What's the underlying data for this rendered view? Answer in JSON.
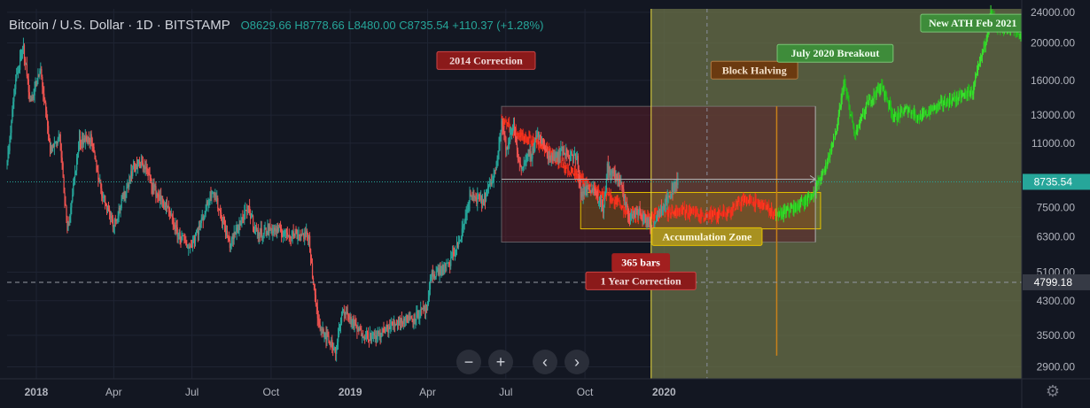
{
  "header": {
    "symbol": "Bitcoin / U.S. Dollar · 1D · BITSTAMP",
    "open": "O8629.66",
    "high": "H8778.66",
    "low": "L8480.00",
    "close": "C8735.54",
    "change": "+110.37 (+1.28%)"
  },
  "controls": {
    "zoom_out": "−",
    "zoom_in": "+",
    "scroll_left": "‹",
    "scroll_right": "›",
    "settings_icon": "gear-icon"
  },
  "colors": {
    "background": "#131722",
    "up": "#26a69a",
    "down": "#ef5350",
    "projection_red": "#e8281c",
    "projection_green": "#22c11a",
    "future_zone": "#6b7148",
    "correction_box": "#5a1e28"
  },
  "chart_data": {
    "type": "candlestick",
    "title": "Bitcoin / U.S. Dollar · 1D · BITSTAMP",
    "y_scale": "log",
    "ylim": [
      2700,
      24500
    ],
    "y_ticks": [
      2900,
      3500,
      4300,
      5100,
      6300,
      7500,
      11000,
      13000,
      16000,
      20000,
      24000
    ],
    "y_tick_labels": [
      "2900.00",
      "3500.00",
      "4300.00",
      "5100.00",
      "6300.00",
      "7500.00",
      "11000.00",
      "13000.00",
      "16000.00",
      "20000.00",
      "24000.00"
    ],
    "x_range": [
      "2017-11-28",
      "2021-02-20"
    ],
    "x_ticks": [
      {
        "date": "2018-01-01",
        "label": "2018",
        "bold": true
      },
      {
        "date": "2018-04-01",
        "label": "Apr",
        "bold": false
      },
      {
        "date": "2018-07-01",
        "label": "Jul",
        "bold": false
      },
      {
        "date": "2018-10-01",
        "label": "Oct",
        "bold": false
      },
      {
        "date": "2019-01-01",
        "label": "2019",
        "bold": true
      },
      {
        "date": "2019-04-01",
        "label": "Apr",
        "bold": false
      },
      {
        "date": "2019-07-01",
        "label": "Jul",
        "bold": false
      },
      {
        "date": "2019-10-01",
        "label": "Oct",
        "bold": false
      },
      {
        "date": "2020-01-01",
        "label": "2020",
        "bold": true
      }
    ],
    "price_labels": [
      {
        "label": "8735.54",
        "value": 8735.54,
        "style": "last"
      },
      {
        "label": "4799.18",
        "value": 4799.18,
        "style": "crosshair"
      }
    ],
    "historical": [
      [
        "2017-11-28",
        9800
      ],
      [
        "2017-12-08",
        16000
      ],
      [
        "2017-12-17",
        19500
      ],
      [
        "2017-12-25",
        14000
      ],
      [
        "2018-01-06",
        17000
      ],
      [
        "2018-01-17",
        10500
      ],
      [
        "2018-01-28",
        11500
      ],
      [
        "2018-02-06",
        6500
      ],
      [
        "2018-02-20",
        11200
      ],
      [
        "2018-03-05",
        11300
      ],
      [
        "2018-03-18",
        8200
      ],
      [
        "2018-04-01",
        6800
      ],
      [
        "2018-04-12",
        7900
      ],
      [
        "2018-04-24",
        9600
      ],
      [
        "2018-05-06",
        9700
      ],
      [
        "2018-05-20",
        8200
      ],
      [
        "2018-06-01",
        7500
      ],
      [
        "2018-06-13",
        6500
      ],
      [
        "2018-06-28",
        5900
      ],
      [
        "2018-07-10",
        6700
      ],
      [
        "2018-07-25",
        8400
      ],
      [
        "2018-08-05",
        7000
      ],
      [
        "2018-08-14",
        6000
      ],
      [
        "2018-08-28",
        7000
      ],
      [
        "2018-09-05",
        7400
      ],
      [
        "2018-09-15",
        6400
      ],
      [
        "2018-10-01",
        6600
      ],
      [
        "2018-10-20",
        6400
      ],
      [
        "2018-11-05",
        6400
      ],
      [
        "2018-11-14",
        6300
      ],
      [
        "2018-11-20",
        4500
      ],
      [
        "2018-11-25",
        3800
      ],
      [
        "2018-12-07",
        3400
      ],
      [
        "2018-12-15",
        3200
      ],
      [
        "2018-12-24",
        4100
      ],
      [
        "2019-01-10",
        3600
      ],
      [
        "2019-01-28",
        3450
      ],
      [
        "2019-02-10",
        3600
      ],
      [
        "2019-02-25",
        3800
      ],
      [
        "2019-03-15",
        3900
      ],
      [
        "2019-04-01",
        4100
      ],
      [
        "2019-04-05",
        5000
      ],
      [
        "2019-04-25",
        5300
      ],
      [
        "2019-05-10",
        6300
      ],
      [
        "2019-05-20",
        8000
      ],
      [
        "2019-06-05",
        7800
      ],
      [
        "2019-06-18",
        9200
      ],
      [
        "2019-06-26",
        12500
      ],
      [
        "2019-07-02",
        10500
      ],
      [
        "2019-07-10",
        12300
      ],
      [
        "2019-07-17",
        9500
      ],
      [
        "2019-08-01",
        10400
      ],
      [
        "2019-08-06",
        11800
      ],
      [
        "2019-08-20",
        10100
      ],
      [
        "2019-09-05",
        10500
      ],
      [
        "2019-09-22",
        10000
      ],
      [
        "2019-09-26",
        8100
      ],
      [
        "2019-10-10",
        8500
      ],
      [
        "2019-10-23",
        7400
      ],
      [
        "2019-10-27",
        9500
      ],
      [
        "2019-11-10",
        8800
      ],
      [
        "2019-11-22",
        7000
      ],
      [
        "2019-12-01",
        7400
      ],
      [
        "2019-12-18",
        6600
      ],
      [
        "2019-12-25",
        7300
      ],
      [
        "2020-01-08",
        8100
      ],
      [
        "2020-01-17",
        8900
      ]
    ],
    "projection_red": [
      [
        "2019-06-26",
        12600
      ],
      [
        "2019-07-15",
        11600
      ],
      [
        "2019-08-10",
        10900
      ],
      [
        "2019-09-01",
        9900
      ],
      [
        "2019-09-25",
        8900
      ],
      [
        "2019-10-15",
        8200
      ],
      [
        "2019-11-01",
        7900
      ],
      [
        "2019-11-25",
        7200
      ],
      [
        "2019-12-10",
        7050
      ],
      [
        "2020-01-01",
        7250
      ],
      [
        "2020-01-25",
        7350
      ],
      [
        "2020-02-20",
        7100
      ],
      [
        "2020-03-15",
        7350
      ],
      [
        "2020-04-05",
        7850
      ],
      [
        "2020-04-25",
        7600
      ],
      [
        "2020-05-10",
        7200
      ]
    ],
    "projection_green": [
      [
        "2020-05-10",
        7100
      ],
      [
        "2020-06-01",
        7500
      ],
      [
        "2020-06-20",
        8000
      ],
      [
        "2020-07-05",
        9300
      ],
      [
        "2020-07-20",
        12000
      ],
      [
        "2020-07-28",
        15800
      ],
      [
        "2020-08-10",
        11500
      ],
      [
        "2020-08-25",
        14000
      ],
      [
        "2020-09-10",
        15500
      ],
      [
        "2020-09-25",
        12800
      ],
      [
        "2020-10-10",
        13500
      ],
      [
        "2020-10-25",
        12800
      ],
      [
        "2020-11-15",
        13800
      ],
      [
        "2020-12-10",
        14500
      ],
      [
        "2020-12-25",
        15000
      ],
      [
        "2021-01-08",
        20000
      ],
      [
        "2021-01-15",
        24000
      ],
      [
        "2021-01-22",
        21500
      ],
      [
        "2021-02-05",
        22000
      ],
      [
        "2021-02-20",
        20800
      ]
    ],
    "zones": {
      "correction_box": {
        "x": [
          "2019-06-26",
          "2020-06-25"
        ],
        "y": [
          6100,
          13700
        ]
      },
      "accumulation_box": {
        "x": [
          "2019-09-26",
          "2020-07-01"
        ],
        "y": [
          6600,
          8200
        ]
      },
      "future_shade": {
        "x": [
          "2019-12-17",
          "2021-02-20"
        ]
      },
      "halving_line": {
        "x": "2020-05-11",
        "y": [
          3100,
          13700
        ]
      },
      "dashed_vertical": {
        "x": "2020-02-20"
      },
      "today_line": {
        "x": "2019-12-17"
      }
    },
    "annotations": [
      {
        "text": "2014 Correction",
        "date": "2019-06-08",
        "value": 18000,
        "style": "red"
      },
      {
        "text": "Block Halving",
        "date": "2020-04-15",
        "value": 17000,
        "style": "orange"
      },
      {
        "text": "July 2020 Breakout",
        "date": "2020-07-18",
        "value": 18800,
        "style": "green"
      },
      {
        "text": "New ATH Feb 2021",
        "date": "2020-12-25",
        "value": 22500,
        "style": "green"
      },
      {
        "text": "Accumulation Zone",
        "date": "2020-02-20",
        "value": 6300,
        "style": "yellow"
      },
      {
        "text": "365 bars",
        "date": "2019-12-05",
        "value": 5400,
        "style": "redsolid"
      },
      {
        "text": "1 Year Correction",
        "date": "2019-12-05",
        "value": 4840,
        "style": "red"
      }
    ]
  }
}
